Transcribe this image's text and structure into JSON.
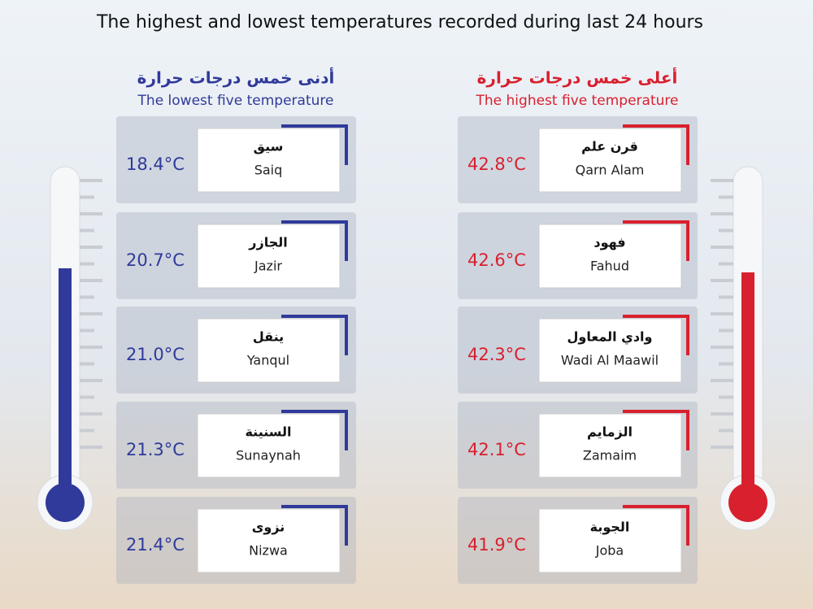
{
  "title": "The highest and lowest temperatures recorded during last 24 hours",
  "lowest": {
    "title_ar": "أدنى خمس درجات حرارة",
    "title_en": "The lowest five temperature",
    "rows": [
      {
        "temp": "18.4°C",
        "name_ar": "سيق",
        "name_en": "Saiq"
      },
      {
        "temp": "20.7°C",
        "name_ar": "الجازر",
        "name_en": "Jazir"
      },
      {
        "temp": "21.0°C",
        "name_ar": "ينقل",
        "name_en": "Yanqul"
      },
      {
        "temp": "21.3°C",
        "name_ar": "السنينة",
        "name_en": "Sunaynah"
      },
      {
        "temp": "21.4°C",
        "name_ar": "نزوى",
        "name_en": "Nizwa"
      }
    ]
  },
  "highest": {
    "title_ar": "أعلى خمس درجات حرارة",
    "title_en": "The highest five temperature",
    "rows": [
      {
        "temp": "42.8°C",
        "name_ar": "قرن علم",
        "name_en": "Qarn Alam"
      },
      {
        "temp": "42.6°C",
        "name_ar": "فهود",
        "name_en": "Fahud"
      },
      {
        "temp": "42.3°C",
        "name_ar": "وادي المعاول",
        "name_en": "Wadi Al Maawil"
      },
      {
        "temp": "42.1°C",
        "name_ar": "الزمايم",
        "name_en": "Zamaim"
      },
      {
        "temp": "41.9°C",
        "name_ar": "الجوبة",
        "name_en": "Joba"
      }
    ]
  }
}
